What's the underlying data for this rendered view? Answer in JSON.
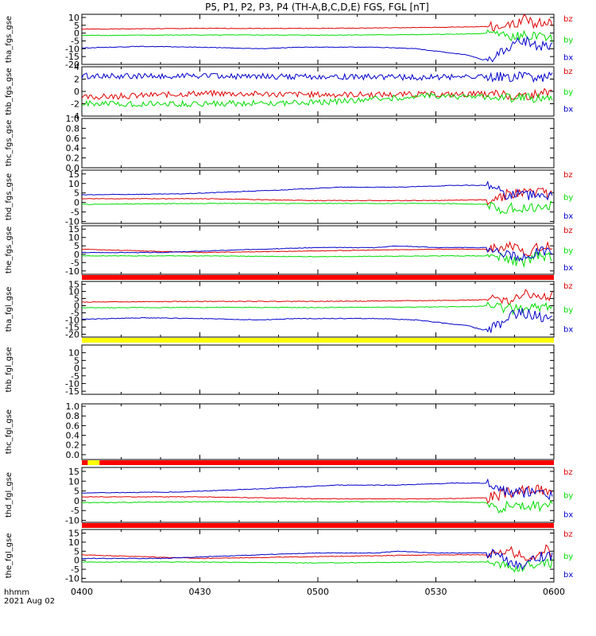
{
  "title": "P5, P1, P2, P3, P4 (TH-A,B,C,D,E) FGS, FGL [nT]",
  "footer": {
    "label1": "hhmm",
    "label2": "2021 Aug 02"
  },
  "x_ticks": [
    "0400",
    "0430",
    "0500",
    "0530",
    "0600"
  ],
  "colors": {
    "bz": "#e00000",
    "by": "#00dd00",
    "bx": "#0000cc",
    "flag_red": "#ff0000",
    "flag_yellow": "#ffff00"
  },
  "chart_data": [
    {
      "type": "line",
      "ylabel": "tha_fgs_gse",
      "yticks": [
        "10",
        "5",
        "0",
        "-5",
        "-10",
        "-15",
        "-20"
      ],
      "ylim": [
        -20,
        12
      ],
      "xlim": [
        "04:00",
        "06:00"
      ],
      "series": [
        {
          "name": "bz",
          "values": [
            [
              0,
              2.5
            ],
            [
              30,
              3
            ],
            [
              60,
              3
            ],
            [
              85,
              3.5
            ],
            [
              100,
              4
            ],
            [
              110,
              5
            ],
            [
              112,
              9
            ],
            [
              115,
              6
            ],
            [
              120,
              7
            ]
          ]
        },
        {
          "name": "by",
          "values": [
            [
              0,
              -1.5
            ],
            [
              30,
              -1.2
            ],
            [
              60,
              -1.3
            ],
            [
              85,
              -1
            ],
            [
              100,
              -0.5
            ],
            [
              105,
              0
            ],
            [
              110,
              -3
            ],
            [
              113,
              -1
            ],
            [
              116,
              -1
            ],
            [
              120,
              -3
            ]
          ]
        },
        {
          "name": "bx",
          "values": [
            [
              0,
              -9.5
            ],
            [
              15,
              -8.5
            ],
            [
              30,
              -9
            ],
            [
              45,
              -10
            ],
            [
              55,
              -9
            ],
            [
              75,
              -9
            ],
            [
              85,
              -10
            ],
            [
              98,
              -14
            ],
            [
              102,
              -17
            ],
            [
              105,
              -15
            ],
            [
              108,
              -11
            ],
            [
              110,
              -6
            ],
            [
              113,
              -5
            ],
            [
              116,
              -8
            ],
            [
              120,
              -9
            ]
          ]
        }
      ]
    },
    {
      "type": "line",
      "ylabel": "thb_fgs_gse",
      "yticks": [
        "4",
        "2",
        "0",
        "-2",
        "-4"
      ],
      "ylim": [
        -4,
        4
      ],
      "xlim": [
        "04:00",
        "06:00"
      ],
      "series": [
        {
          "name": "bz",
          "values": [
            [
              0,
              -1
            ],
            [
              30,
              -0.3
            ],
            [
              60,
              -0.5
            ],
            [
              90,
              -0.5
            ],
            [
              108,
              -0.4
            ],
            [
              110,
              -0.8
            ],
            [
              120,
              -0.2
            ]
          ]
        },
        {
          "name": "by",
          "values": [
            [
              0,
              -2
            ],
            [
              30,
              -2
            ],
            [
              60,
              -1.8
            ],
            [
              75,
              -1.2
            ],
            [
              90,
              -0.7
            ],
            [
              108,
              -1
            ],
            [
              120,
              -1.2
            ]
          ]
        },
        {
          "name": "bx",
          "values": [
            [
              0,
              2.5
            ],
            [
              30,
              2.5
            ],
            [
              60,
              2.4
            ],
            [
              90,
              2.3
            ],
            [
              108,
              2.4
            ],
            [
              120,
              2.3
            ]
          ]
        }
      ]
    },
    {
      "type": "line",
      "ylabel": "thc_fgs_gse",
      "yticks": [
        "1.0",
        "0.8",
        "0.6",
        "0.4",
        "0.2",
        "0.0"
      ],
      "ylim": [
        0,
        1
      ],
      "series": []
    },
    {
      "type": "line",
      "ylabel": "thd_fgs_gse",
      "yticks": [
        "15",
        "10",
        "5",
        "0",
        "-5",
        "-10"
      ],
      "ylim": [
        -11,
        17
      ],
      "xlim": [
        "04:00",
        "06:00"
      ],
      "series": [
        {
          "name": "bz",
          "values": [
            [
              0,
              2
            ],
            [
              30,
              2
            ],
            [
              60,
              1
            ],
            [
              90,
              1
            ],
            [
              103,
              1.5
            ],
            [
              108,
              4
            ],
            [
              115,
              6
            ],
            [
              120,
              4
            ]
          ]
        },
        {
          "name": "by",
          "values": [
            [
              0,
              -1
            ],
            [
              30,
              -0.5
            ],
            [
              60,
              -0.5
            ],
            [
              90,
              -0.5
            ],
            [
              103,
              -1
            ],
            [
              106,
              -4
            ],
            [
              110,
              -2
            ],
            [
              115,
              -3
            ],
            [
              120,
              -1
            ]
          ]
        },
        {
          "name": "bx",
          "values": [
            [
              0,
              4
            ],
            [
              25,
              4.5
            ],
            [
              50,
              6.5
            ],
            [
              65,
              8
            ],
            [
              80,
              8
            ],
            [
              95,
              9
            ],
            [
              103,
              9
            ],
            [
              105,
              8
            ],
            [
              108,
              4
            ],
            [
              114,
              4
            ],
            [
              120,
              3
            ]
          ]
        }
      ]
    },
    {
      "type": "line",
      "ylabel": "the_fgs_gse",
      "yticks": [
        "15",
        "10",
        "5",
        "0",
        "-5",
        "-10"
      ],
      "ylim": [
        -12,
        17
      ],
      "xlim": [
        "04:00",
        "06:00"
      ],
      "series": [
        {
          "name": "bz",
          "values": [
            [
              0,
              3
            ],
            [
              30,
              1
            ],
            [
              60,
              2
            ],
            [
              90,
              3
            ],
            [
              104,
              3
            ],
            [
              109,
              5
            ],
            [
              113,
              1
            ],
            [
              118,
              6
            ],
            [
              120,
              4
            ]
          ]
        },
        {
          "name": "by",
          "values": [
            [
              0,
              -1
            ],
            [
              30,
              -1
            ],
            [
              60,
              -1.5
            ],
            [
              90,
              -1
            ],
            [
              104,
              -1
            ],
            [
              108,
              -3
            ],
            [
              112,
              -5
            ],
            [
              116,
              -1
            ],
            [
              120,
              -2
            ]
          ]
        },
        {
          "name": "bx",
          "values": [
            [
              0,
              1
            ],
            [
              20,
              1
            ],
            [
              45,
              3
            ],
            [
              60,
              4
            ],
            [
              75,
              4
            ],
            [
              80,
              5
            ],
            [
              90,
              4
            ],
            [
              100,
              4
            ],
            [
              104,
              4
            ],
            [
              108,
              0
            ],
            [
              112,
              -3
            ],
            [
              116,
              2
            ],
            [
              120,
              2
            ]
          ]
        }
      ]
    },
    {
      "type": "line",
      "ylabel": "tha_fgl_gse",
      "yticks": [
        "15",
        "10",
        "5",
        "0",
        "-5",
        "-10",
        "-15",
        "-20"
      ],
      "ylim": [
        -22,
        17
      ],
      "xlim": [
        "04:00",
        "06:00"
      ],
      "series": [
        {
          "name": "bz",
          "values": [
            [
              0,
              2.5
            ],
            [
              30,
              3
            ],
            [
              60,
              3
            ],
            [
              85,
              3.5
            ],
            [
              100,
              4
            ],
            [
              110,
              5
            ],
            [
              112,
              9
            ],
            [
              115,
              6
            ],
            [
              120,
              7
            ]
          ]
        },
        {
          "name": "by",
          "values": [
            [
              0,
              -1.5
            ],
            [
              30,
              -1.2
            ],
            [
              60,
              -1.3
            ],
            [
              85,
              -1
            ],
            [
              100,
              -0.5
            ],
            [
              105,
              0
            ],
            [
              110,
              -3
            ],
            [
              113,
              -1
            ],
            [
              116,
              -1
            ],
            [
              120,
              -3
            ]
          ]
        },
        {
          "name": "bx",
          "values": [
            [
              0,
              -9.5
            ],
            [
              15,
              -8.5
            ],
            [
              30,
              -9
            ],
            [
              45,
              -10
            ],
            [
              55,
              -9
            ],
            [
              75,
              -9
            ],
            [
              85,
              -10
            ],
            [
              98,
              -14
            ],
            [
              102,
              -17
            ],
            [
              105,
              -15
            ],
            [
              108,
              -11
            ],
            [
              110,
              -6
            ],
            [
              113,
              -5
            ],
            [
              116,
              -8
            ],
            [
              120,
              -9
            ]
          ]
        }
      ]
    },
    {
      "type": "line",
      "ylabel": "thb_fgl_gse",
      "yticks": [
        "10",
        "5",
        "0",
        "-5",
        "-10",
        "-15"
      ],
      "ylim": [
        -17,
        15
      ],
      "series": []
    },
    {
      "type": "line",
      "ylabel": "thc_fgl_gse",
      "yticks": [
        "1.0",
        "0.8",
        "0.6",
        "0.4",
        "0.2",
        "0.0"
      ],
      "ylim": [
        -0.1,
        1.05
      ],
      "series": []
    },
    {
      "type": "line",
      "ylabel": "thd_fgl_gse",
      "yticks": [
        "15",
        "10",
        "5",
        "0",
        "-5",
        "-10"
      ],
      "ylim": [
        -11,
        17
      ],
      "xlim": [
        "04:00",
        "06:00"
      ],
      "series": [
        {
          "name": "bz",
          "values": [
            [
              0,
              2
            ],
            [
              30,
              2
            ],
            [
              60,
              1
            ],
            [
              90,
              1
            ],
            [
              103,
              1.5
            ],
            [
              108,
              4
            ],
            [
              115,
              6
            ],
            [
              120,
              4
            ]
          ]
        },
        {
          "name": "by",
          "values": [
            [
              0,
              -1
            ],
            [
              30,
              -0.5
            ],
            [
              60,
              -0.5
            ],
            [
              90,
              -0.5
            ],
            [
              103,
              -1
            ],
            [
              106,
              -4
            ],
            [
              110,
              -2
            ],
            [
              115,
              -3
            ],
            [
              120,
              -1
            ]
          ]
        },
        {
          "name": "bx",
          "values": [
            [
              0,
              4
            ],
            [
              25,
              4.5
            ],
            [
              50,
              6.5
            ],
            [
              65,
              8
            ],
            [
              80,
              8
            ],
            [
              95,
              9
            ],
            [
              103,
              9
            ],
            [
              105,
              8
            ],
            [
              108,
              4
            ],
            [
              114,
              4
            ],
            [
              120,
              3
            ]
          ]
        }
      ]
    },
    {
      "type": "line",
      "ylabel": "the_fgl_gse",
      "yticks": [
        "15",
        "10",
        "5",
        "0",
        "-5",
        "-10"
      ],
      "ylim": [
        -12,
        17
      ],
      "xlim": [
        "04:00",
        "06:00"
      ],
      "series": [
        {
          "name": "bz",
          "values": [
            [
              0,
              3
            ],
            [
              30,
              1
            ],
            [
              60,
              2
            ],
            [
              90,
              3
            ],
            [
              104,
              3
            ],
            [
              109,
              5
            ],
            [
              113,
              1
            ],
            [
              118,
              6
            ],
            [
              120,
              4
            ]
          ]
        },
        {
          "name": "by",
          "values": [
            [
              0,
              -1
            ],
            [
              30,
              -1
            ],
            [
              60,
              -1.5
            ],
            [
              90,
              -1
            ],
            [
              104,
              -1
            ],
            [
              108,
              -3
            ],
            [
              112,
              -5
            ],
            [
              116,
              -1
            ],
            [
              120,
              -2
            ]
          ]
        },
        {
          "name": "bx",
          "values": [
            [
              0,
              1
            ],
            [
              20,
              1
            ],
            [
              45,
              3
            ],
            [
              60,
              4
            ],
            [
              75,
              4
            ],
            [
              80,
              5
            ],
            [
              90,
              4
            ],
            [
              100,
              4
            ],
            [
              104,
              4
            ],
            [
              108,
              0
            ],
            [
              112,
              -3
            ],
            [
              116,
              2
            ],
            [
              120,
              2
            ]
          ]
        }
      ]
    }
  ]
}
